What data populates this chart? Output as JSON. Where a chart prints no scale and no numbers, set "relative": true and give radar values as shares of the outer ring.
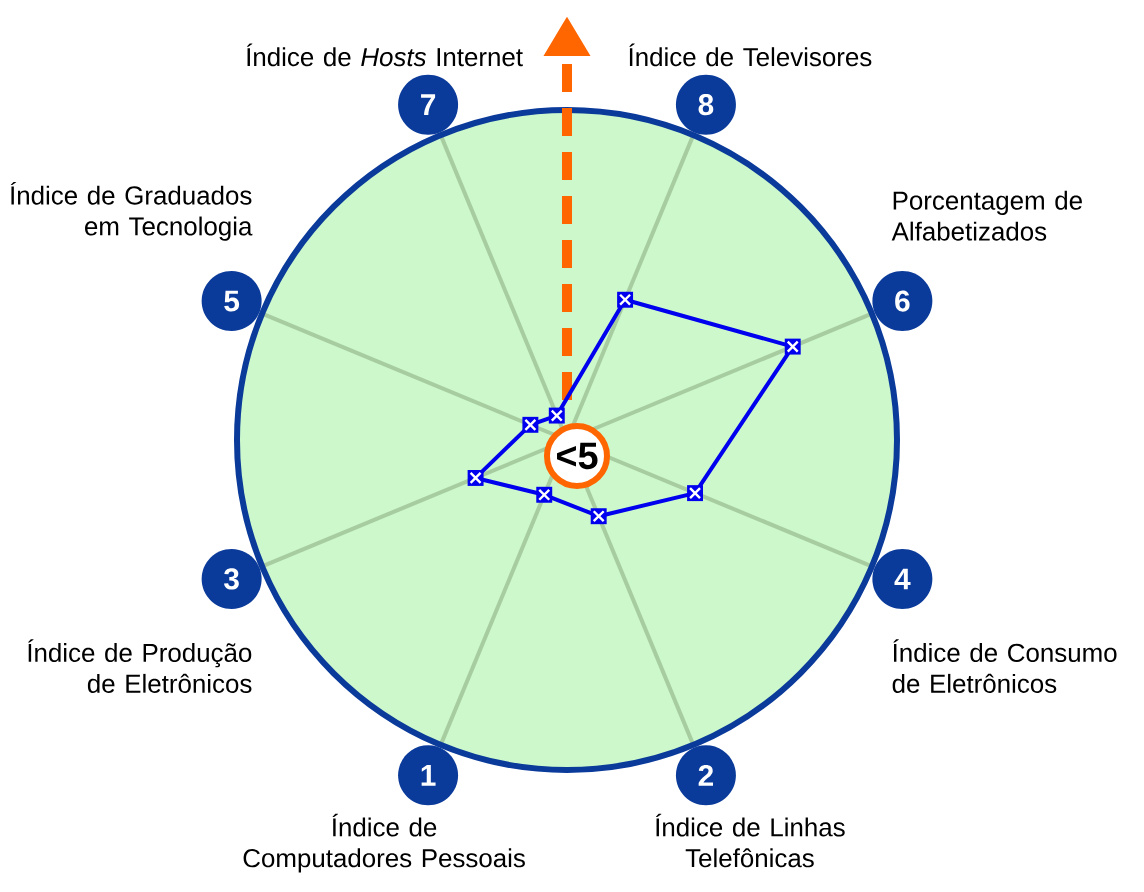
{
  "chart_data": {
    "type": "radar",
    "relative": true,
    "marker": "cross",
    "categories": [
      "Índice de Televisores",
      "Porcentagem de Alfabetizados",
      "Índice de Consumo de Eletrônicos",
      "Índice de Linhas Telefônicas",
      "Índice de Computadores Pessoais",
      "Índice de Produção de Eletrônicos",
      "Índice de Graduados em Tecnologia",
      "Índice de *Hosts* Internet"
    ],
    "series": [
      {
        "color": "#0000ee",
        "values": [
          0.46,
          0.74,
          0.42,
          0.25,
          0.18,
          0.3,
          0.12,
          0.08
        ]
      }
    ],
    "annotations": [
      "<5",
      "8",
      "6",
      "4",
      "2",
      "1",
      "3",
      "5",
      "7"
    ]
  }
}
